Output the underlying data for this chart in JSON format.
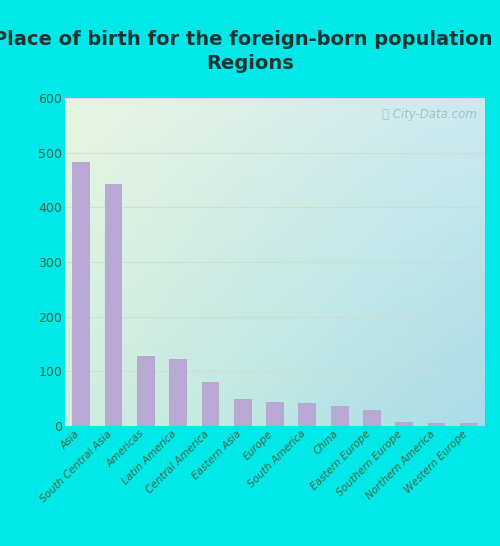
{
  "title": "Place of birth for the foreign-born population -\nRegions",
  "categories": [
    "Asia",
    "South Central Asia",
    "Americas",
    "Latin America",
    "Central America",
    "Eastern Asia",
    "Europe",
    "South America",
    "China",
    "Eastern Europe",
    "Southern Europe",
    "Northern America",
    "Western Europe"
  ],
  "values": [
    483,
    443,
    128,
    122,
    80,
    50,
    44,
    42,
    36,
    29,
    7,
    6,
    5
  ],
  "bar_color": "#b9a8d4",
  "background_outer": "#00e8e8",
  "background_inner_topleft": "#e6f5e2",
  "background_inner_topright": "#cceaf0",
  "background_inner_bottomleft": "#d0eedd",
  "background_inner_bottomright": "#a8dce8",
  "ylim": [
    0,
    600
  ],
  "yticks": [
    0,
    100,
    200,
    300,
    400,
    500,
    600
  ],
  "title_fontsize": 14,
  "tick_label_fontsize": 9,
  "xtick_fontsize": 7.5,
  "watermark_text": "ⓘ City-Data.com",
  "gridline_color": "#ccddcc",
  "gridline_alpha": 0.8
}
